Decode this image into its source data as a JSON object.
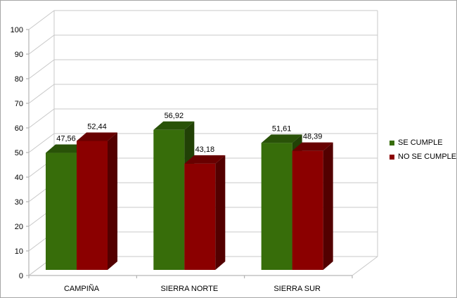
{
  "chart_data": {
    "type": "bar",
    "style": "3d-clustered-column",
    "title": "",
    "xlabel": "",
    "ylabel": "",
    "categories": [
      "CAMPIÑA",
      "SIERRA NORTE",
      "SIERRA SUR"
    ],
    "series": [
      {
        "name": "SE CUMPLE",
        "values": [
          47.56,
          56.92,
          51.61
        ],
        "color": "#376d0a"
      },
      {
        "name": "NO SE CUMPLE",
        "values": [
          52.44,
          43.18,
          48.39
        ],
        "color": "#8b0000"
      }
    ],
    "value_labels": [
      [
        "47,56",
        "56,92",
        "51,61"
      ],
      [
        "52,44",
        "43,18",
        "48,39"
      ]
    ],
    "y_ticks": [
      "0",
      "10",
      "20",
      "30",
      "40",
      "50",
      "60",
      "70",
      "80",
      "90",
      "100"
    ],
    "ylim": [
      0,
      100
    ],
    "grid": true,
    "legend": "right"
  }
}
